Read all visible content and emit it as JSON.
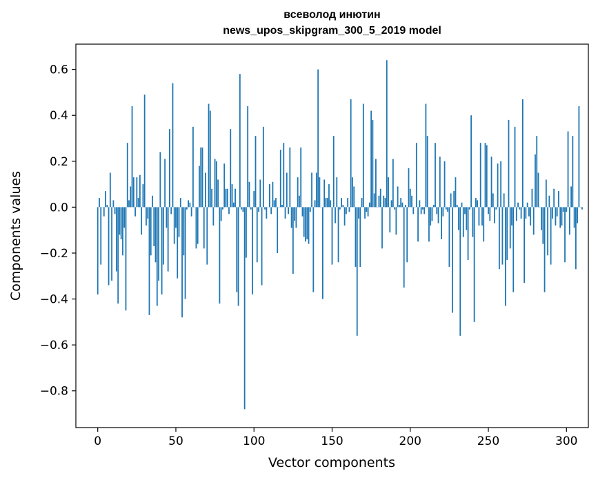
{
  "chart_data": {
    "type": "bar",
    "title": "всеволод инютин",
    "subtitle": "news_upos_skipgram_300_5_2019 model",
    "xlabel": "Vector components",
    "ylabel": "Components values",
    "xlim": [
      -14,
      314
    ],
    "ylim": [
      -0.96,
      0.71
    ],
    "xticks": [
      0,
      50,
      100,
      150,
      200,
      250,
      300
    ],
    "xtick_labels": [
      "0",
      "50",
      "100",
      "150",
      "200",
      "250",
      "300"
    ],
    "yticks": [
      -0.8,
      -0.6,
      -0.4,
      -0.2,
      0.0,
      0.2,
      0.4,
      0.6
    ],
    "ytick_labels": [
      "−0.8",
      "−0.6",
      "−0.4",
      "−0.2",
      "0.0",
      "0.2",
      "0.4",
      "0.6"
    ],
    "bar_color": "#1f77b4",
    "grid": false,
    "values": [
      -0.38,
      0.04,
      -0.25,
      0.0,
      -0.04,
      0.07,
      0.01,
      -0.34,
      0.15,
      -0.32,
      0.03,
      -0.03,
      -0.28,
      -0.42,
      -0.12,
      -0.14,
      -0.21,
      -0.09,
      -0.45,
      0.28,
      0.03,
      0.09,
      0.44,
      0.13,
      -0.04,
      0.13,
      0.04,
      0.14,
      -0.12,
      0.1,
      0.49,
      -0.08,
      -0.05,
      -0.47,
      -0.21,
      0.05,
      -0.17,
      -0.24,
      -0.43,
      -0.32,
      0.24,
      -0.38,
      -0.25,
      0.21,
      -0.09,
      -0.28,
      0.34,
      -0.03,
      0.54,
      -0.16,
      -0.09,
      -0.31,
      -0.13,
      0.04,
      -0.48,
      -0.21,
      -0.4,
      -0.01,
      0.03,
      0.02,
      -0.04,
      0.35,
      0.0,
      -0.18,
      -0.16,
      0.18,
      0.26,
      0.26,
      -0.18,
      0.15,
      -0.25,
      0.45,
      0.42,
      0.08,
      -0.08,
      0.21,
      0.2,
      0.12,
      -0.42,
      -0.06,
      -0.01,
      0.19,
      0.08,
      0.08,
      -0.03,
      0.34,
      0.1,
      0.02,
      0.08,
      -0.37,
      -0.43,
      0.58,
      -0.01,
      -0.02,
      -0.88,
      -0.22,
      0.44,
      0.11,
      -0.01,
      -0.38,
      0.07,
      0.31,
      -0.24,
      -0.02,
      0.12,
      -0.34,
      0.35,
      -0.01,
      -0.05,
      0.0,
      0.1,
      -0.03,
      0.11,
      0.03,
      0.04,
      -0.2,
      0.0,
      0.25,
      0.01,
      0.28,
      -0.05,
      0.15,
      -0.03,
      0.26,
      -0.09,
      -0.29,
      -0.06,
      -0.09,
      0.13,
      0.05,
      0.26,
      -0.04,
      -0.13,
      -0.15,
      -0.14,
      -0.16,
      -0.02,
      0.15,
      -0.37,
      0.03,
      0.15,
      0.6,
      0.13,
      0.0,
      -0.4,
      0.12,
      0.04,
      0.04,
      0.1,
      0.03,
      -0.25,
      0.31,
      -0.07,
      0.13,
      -0.24,
      -0.01,
      0.04,
      0.01,
      -0.08,
      -0.03,
      0.04,
      -0.02,
      0.47,
      0.13,
      0.09,
      -0.26,
      -0.56,
      -0.05,
      -0.26,
      0.04,
      0.45,
      -0.05,
      -0.02,
      -0.04,
      0.02,
      0.42,
      0.38,
      0.06,
      0.21,
      0.0,
      0.05,
      0.08,
      -0.18,
      0.05,
      0.04,
      0.64,
      0.13,
      -0.11,
      0.03,
      0.21,
      -0.01,
      -0.12,
      0.09,
      0.01,
      0.04,
      0.02,
      -0.35,
      0.01,
      -0.24,
      0.17,
      0.08,
      0.05,
      -0.03,
      0.0,
      0.28,
      -0.15,
      0.03,
      -0.03,
      -0.01,
      -0.03,
      0.45,
      0.31,
      -0.15,
      -0.08,
      -0.06,
      0.01,
      0.28,
      -0.03,
      -0.07,
      0.22,
      -0.14,
      -0.04,
      0.2,
      -0.01,
      -0.02,
      -0.26,
      0.06,
      -0.46,
      0.07,
      0.13,
      0.01,
      -0.1,
      -0.56,
      0.02,
      -0.13,
      -0.03,
      -0.1,
      -0.23,
      -0.01,
      0.4,
      -0.13,
      -0.5,
      0.04,
      0.03,
      -0.08,
      0.28,
      -0.08,
      -0.15,
      0.28,
      0.27,
      -0.03,
      -0.06,
      0.22,
      0.06,
      -0.07,
      -0.01,
      0.19,
      -0.27,
      0.2,
      -0.25,
      0.06,
      -0.43,
      -0.23,
      0.38,
      -0.18,
      -0.08,
      -0.37,
      0.35,
      -0.06,
      0.02,
      -0.01,
      -0.05,
      0.47,
      -0.33,
      -0.05,
      0.02,
      -0.04,
      -0.08,
      0.08,
      -0.12,
      0.23,
      0.31,
      0.15,
      0.0,
      -0.1,
      -0.16,
      -0.37,
      0.12,
      -0.21,
      0.05,
      -0.25,
      -0.05,
      0.08,
      -0.08,
      -0.04,
      0.07,
      -0.09,
      -0.08,
      -0.02,
      -0.24,
      -0.02,
      0.33,
      -0.12,
      0.09,
      0.31,
      -0.09,
      -0.27,
      -0.07,
      0.44,
      0.0,
      -0.01
    ]
  }
}
